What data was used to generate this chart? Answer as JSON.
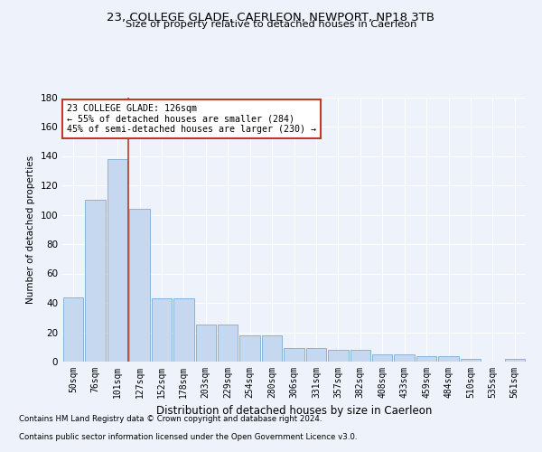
{
  "title1": "23, COLLEGE GLADE, CAERLEON, NEWPORT, NP18 3TB",
  "title2": "Size of property relative to detached houses in Caerleon",
  "xlabel": "Distribution of detached houses by size in Caerleon",
  "ylabel": "Number of detached properties",
  "categories": [
    "50sqm",
    "76sqm",
    "101sqm",
    "127sqm",
    "152sqm",
    "178sqm",
    "203sqm",
    "229sqm",
    "254sqm",
    "280sqm",
    "306sqm",
    "331sqm",
    "357sqm",
    "382sqm",
    "408sqm",
    "433sqm",
    "459sqm",
    "484sqm",
    "510sqm",
    "535sqm",
    "561sqm"
  ],
  "values": [
    44,
    110,
    138,
    104,
    43,
    43,
    25,
    25,
    18,
    18,
    9,
    9,
    8,
    8,
    5,
    5,
    4,
    4,
    2,
    0,
    2
  ],
  "bar_color": "#c5d8f0",
  "bar_edge_color": "#7aadd4",
  "vline_x": 2.5,
  "annotation_line1": "23 COLLEGE GLADE: 126sqm",
  "annotation_line2": "← 55% of detached houses are smaller (284)",
  "annotation_line3": "45% of semi-detached houses are larger (230) →",
  "vline_color": "#c0392b",
  "annotation_box_edge": "#c0392b",
  "footer1": "Contains HM Land Registry data © Crown copyright and database right 2024.",
  "footer2": "Contains public sector information licensed under the Open Government Licence v3.0.",
  "ylim": [
    0,
    180
  ],
  "yticks": [
    0,
    20,
    40,
    60,
    80,
    100,
    120,
    140,
    160,
    180
  ],
  "background_color": "#eef2fb",
  "grid_color": "#ffffff"
}
